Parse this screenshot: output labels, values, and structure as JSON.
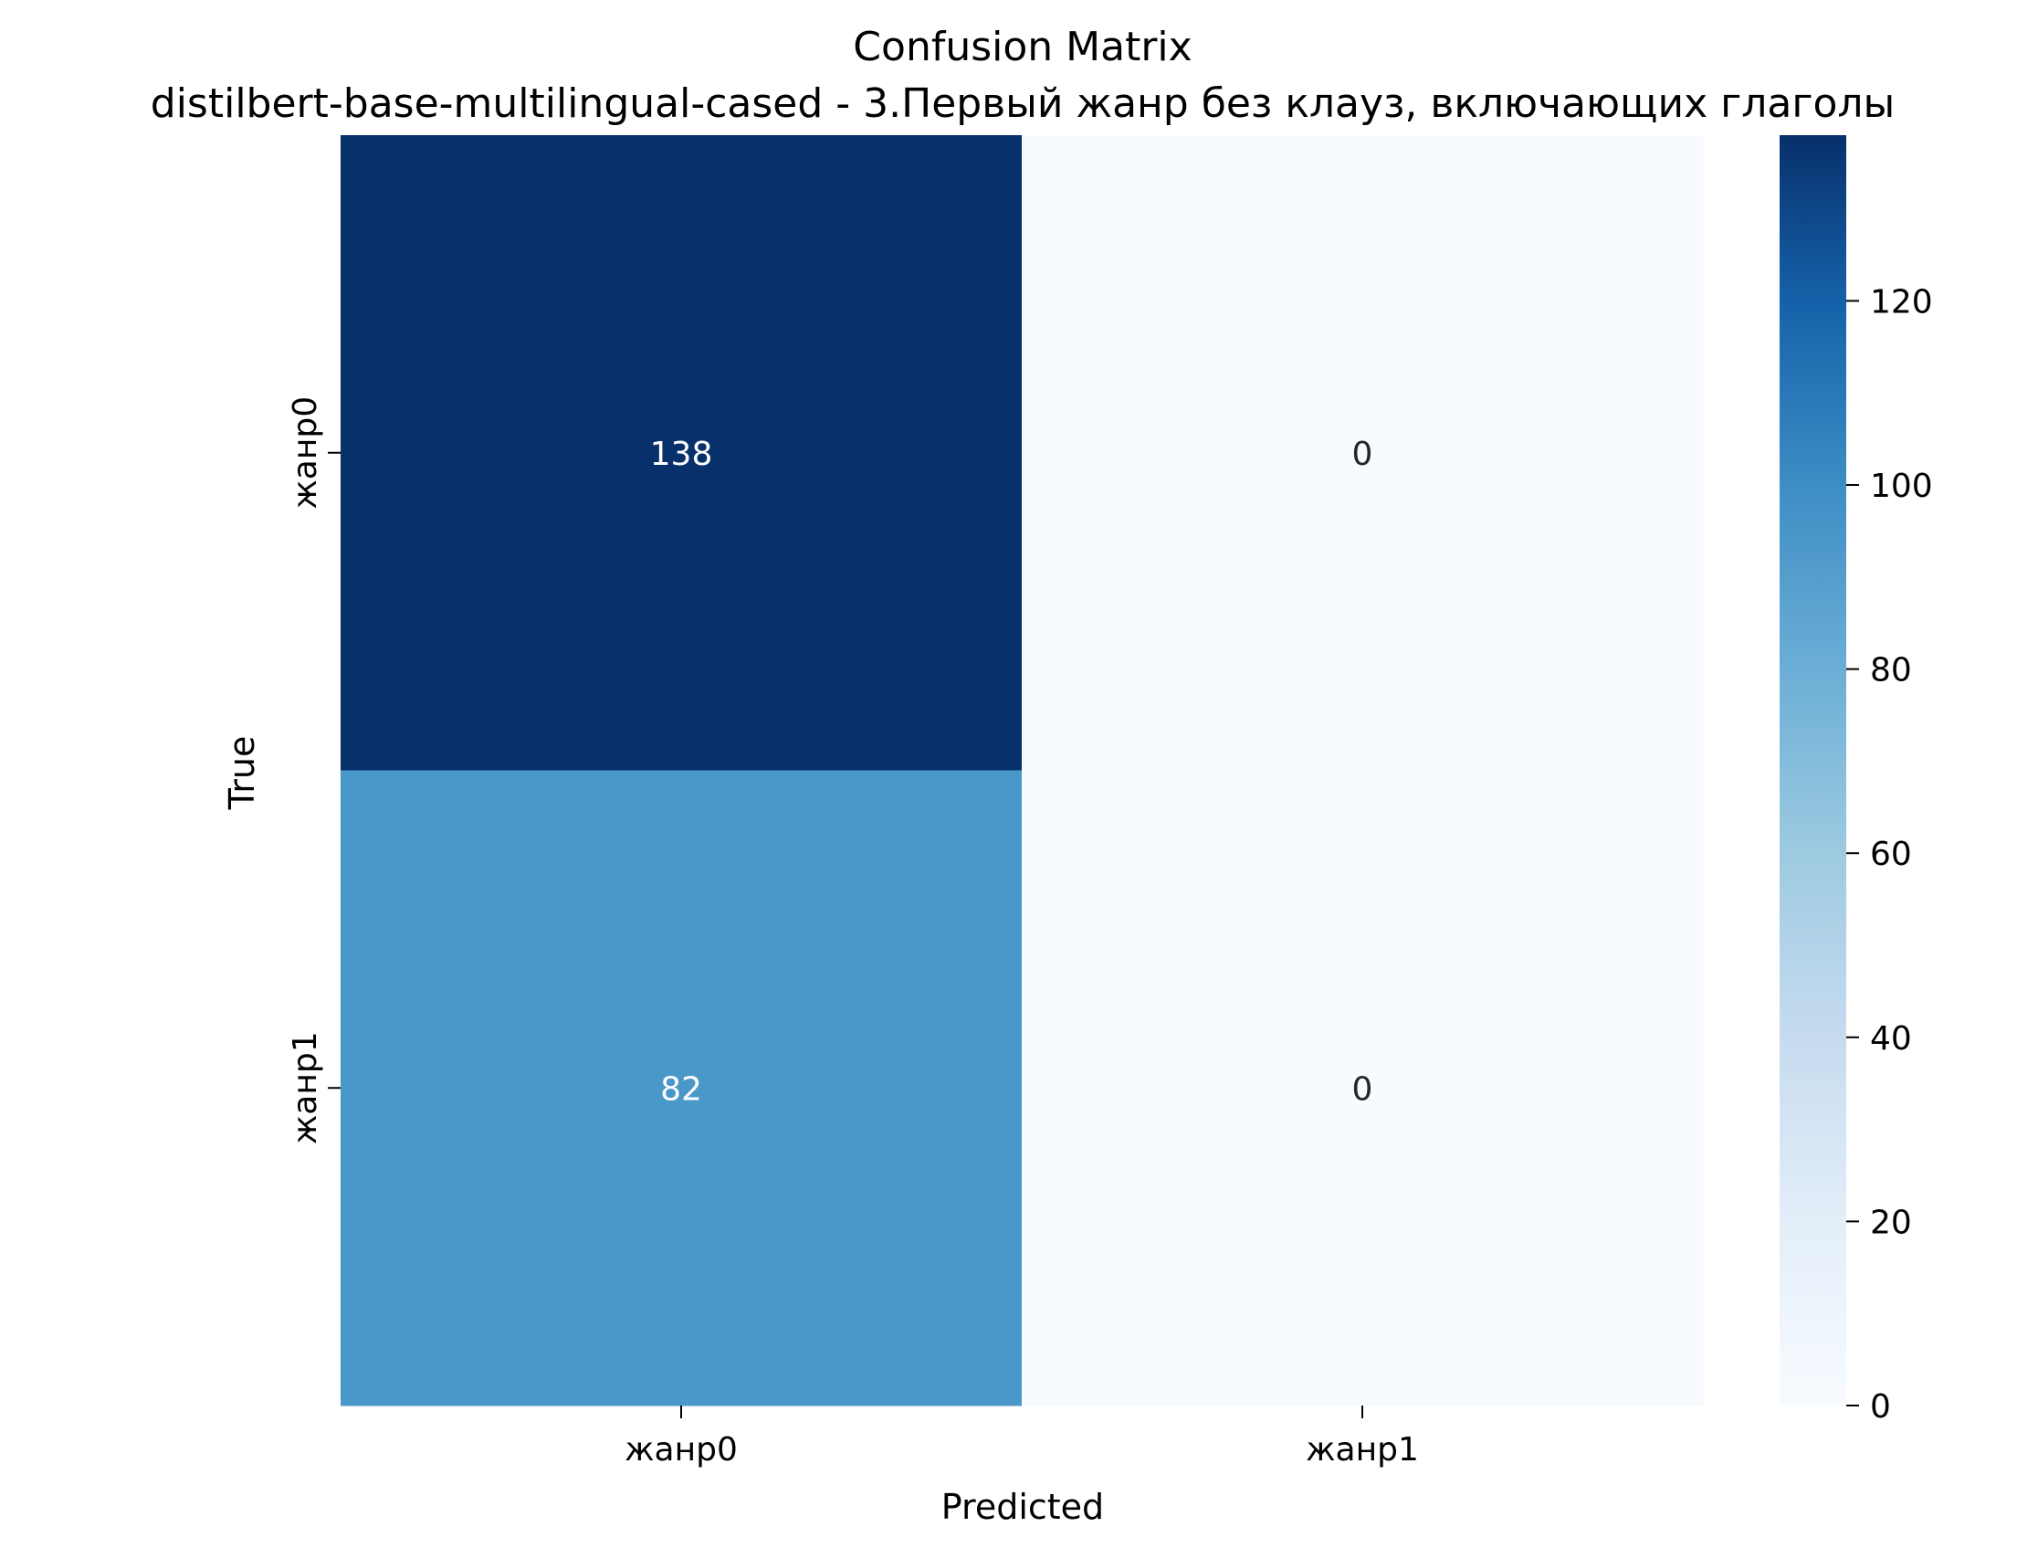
{
  "chart_data": {
    "type": "heatmap",
    "title": "Confusion Matrix",
    "subtitle": "distilbert-base-multilingual-cased - 3.Первый жанр без клауз, включающих глаголы",
    "xlabel": "Predicted",
    "ylabel": "True",
    "x_categories": [
      "жанр0",
      "жанр1"
    ],
    "y_categories": [
      "жанр0",
      "жанр1"
    ],
    "values": [
      [
        138,
        0
      ],
      [
        82,
        0
      ]
    ],
    "colormap": "Blues",
    "colorbar": {
      "min": 0,
      "max": 138,
      "ticks": [
        0,
        20,
        40,
        60,
        80,
        100,
        120
      ],
      "tick_labels": [
        "0",
        "20",
        "40",
        "60",
        "80",
        "100",
        "120"
      ]
    },
    "cell_colors": [
      [
        "#08306b",
        "#f7fbff"
      ],
      [
        "#4a98c9",
        "#f7fbff"
      ]
    ],
    "annotation_colors": [
      [
        "#ffffff",
        "#262626"
      ],
      [
        "#ffffff",
        "#262626"
      ]
    ]
  }
}
